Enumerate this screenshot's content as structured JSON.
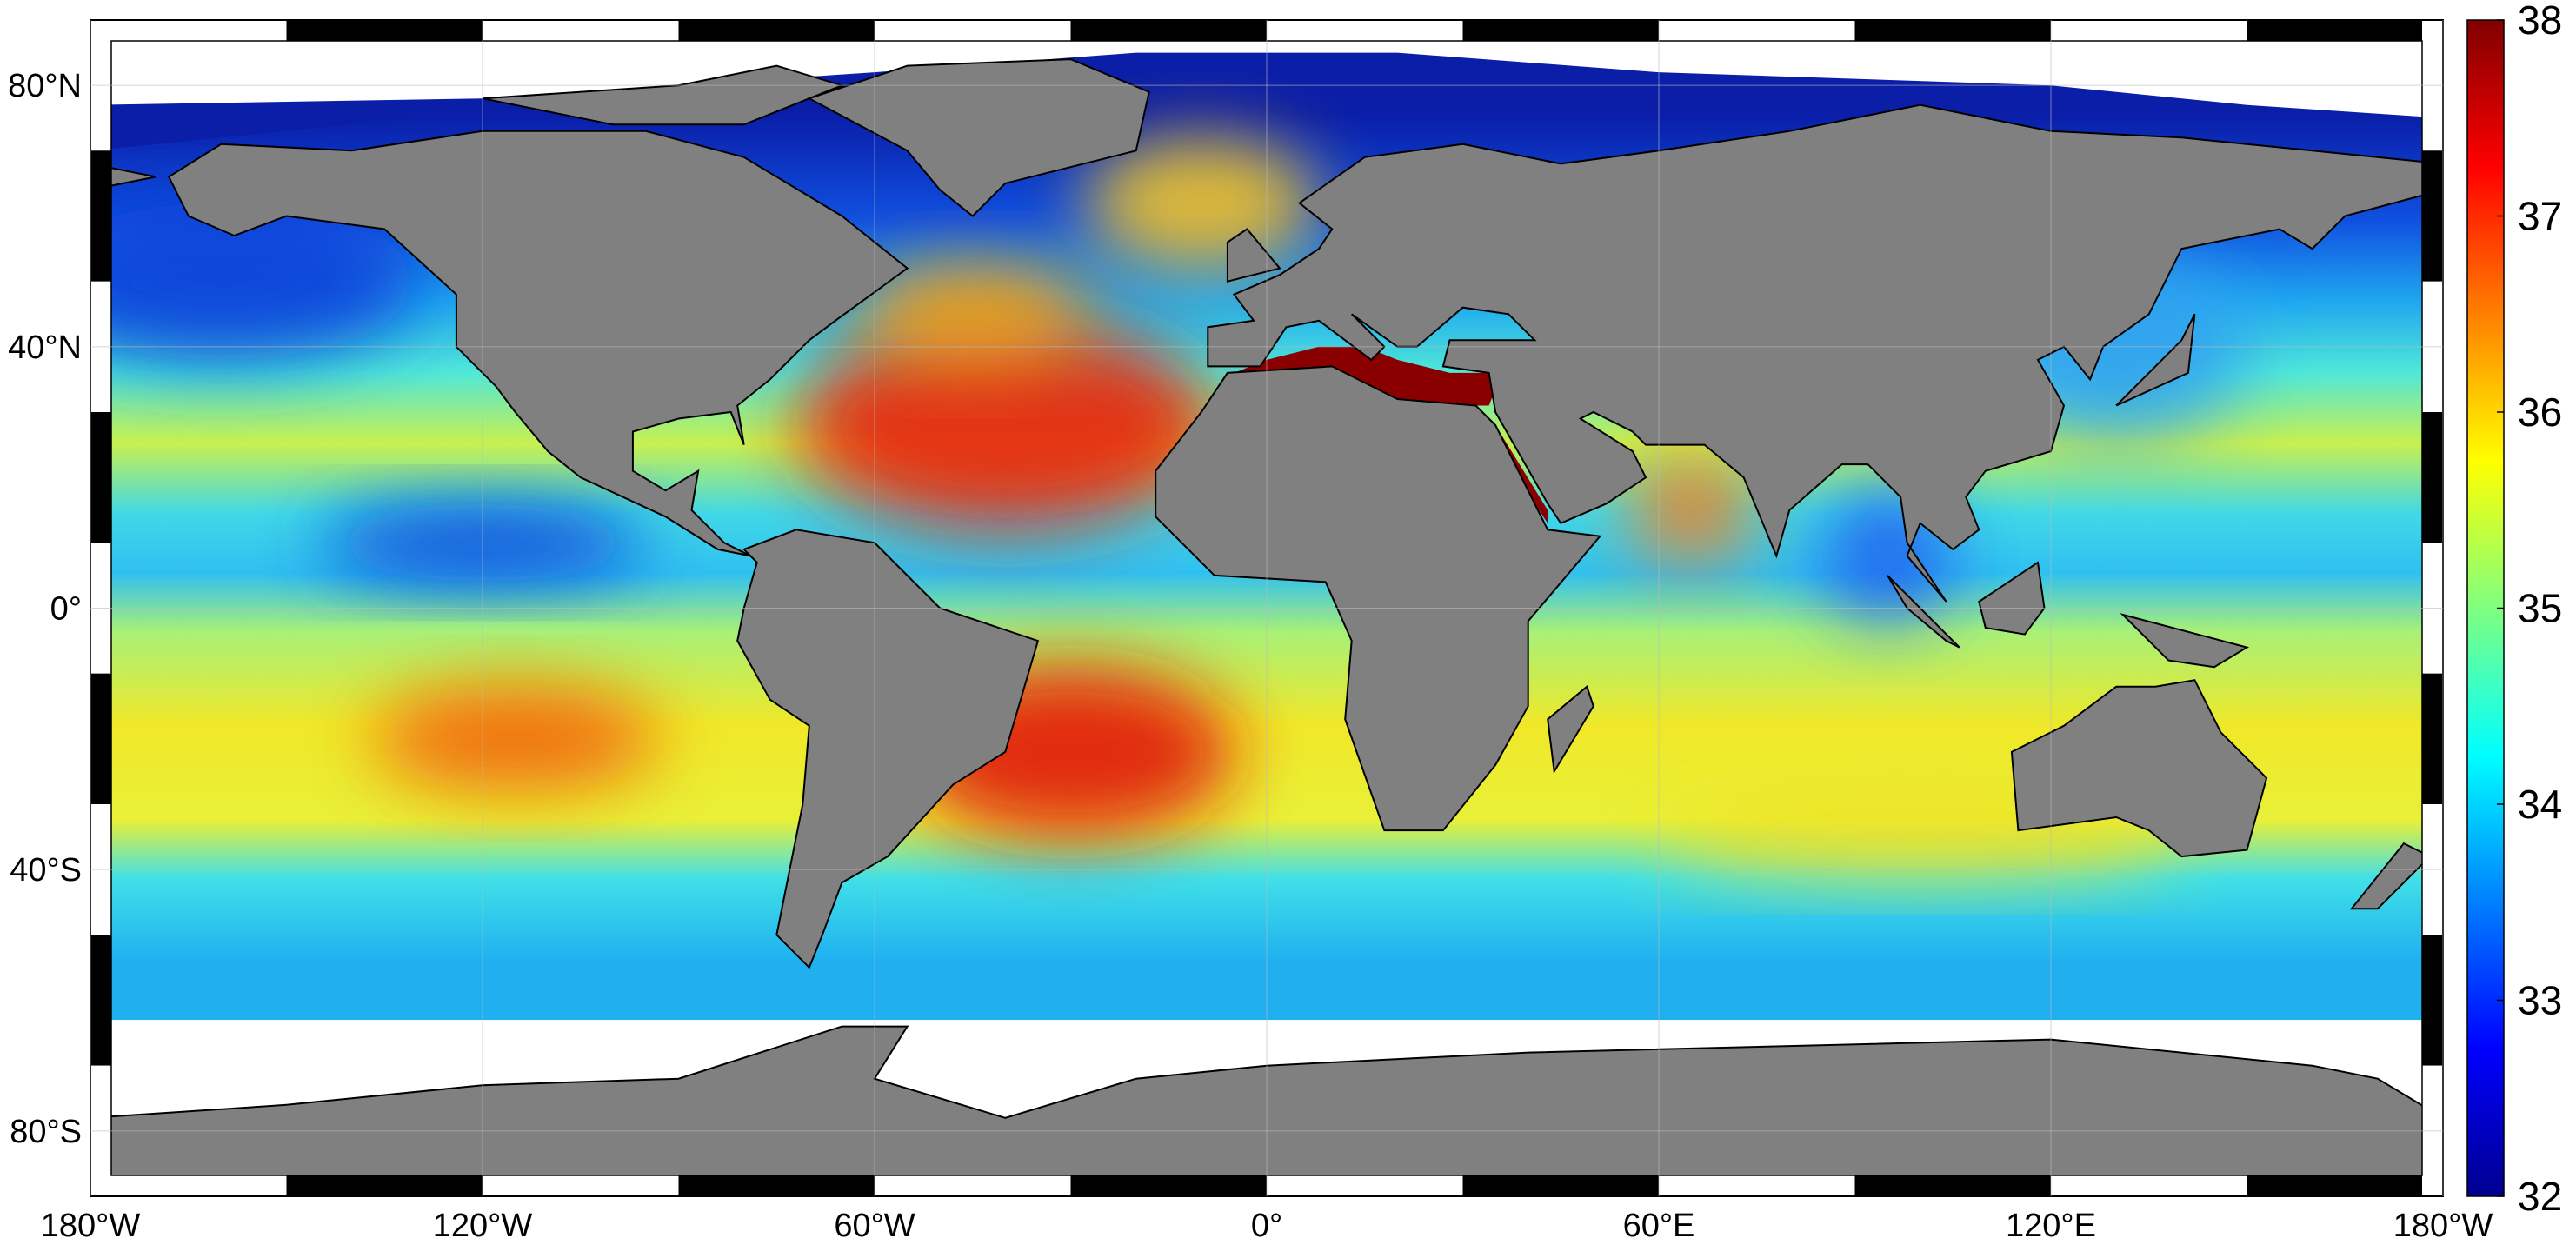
{
  "chart_data": {
    "type": "map",
    "lon_ticks": [
      {
        "value": -180,
        "label": "180°W"
      },
      {
        "value": -120,
        "label": "120°W"
      },
      {
        "value": -60,
        "label": "60°W"
      },
      {
        "value": 0,
        "label": "0°"
      },
      {
        "value": 60,
        "label": "60°E"
      },
      {
        "value": 120,
        "label": "120°E"
      },
      {
        "value": 180,
        "label": "180°W"
      }
    ],
    "lat_ticks": [
      {
        "value": 80,
        "label": "80°N"
      },
      {
        "value": 40,
        "label": "40°N"
      },
      {
        "value": 0,
        "label": "0°"
      },
      {
        "value": -40,
        "label": "40°S"
      },
      {
        "value": -80,
        "label": "80°S"
      }
    ],
    "colorbar": {
      "lim": [
        32,
        38
      ],
      "ticks": [
        32,
        33,
        34,
        35,
        36,
        37,
        38
      ]
    }
  }
}
